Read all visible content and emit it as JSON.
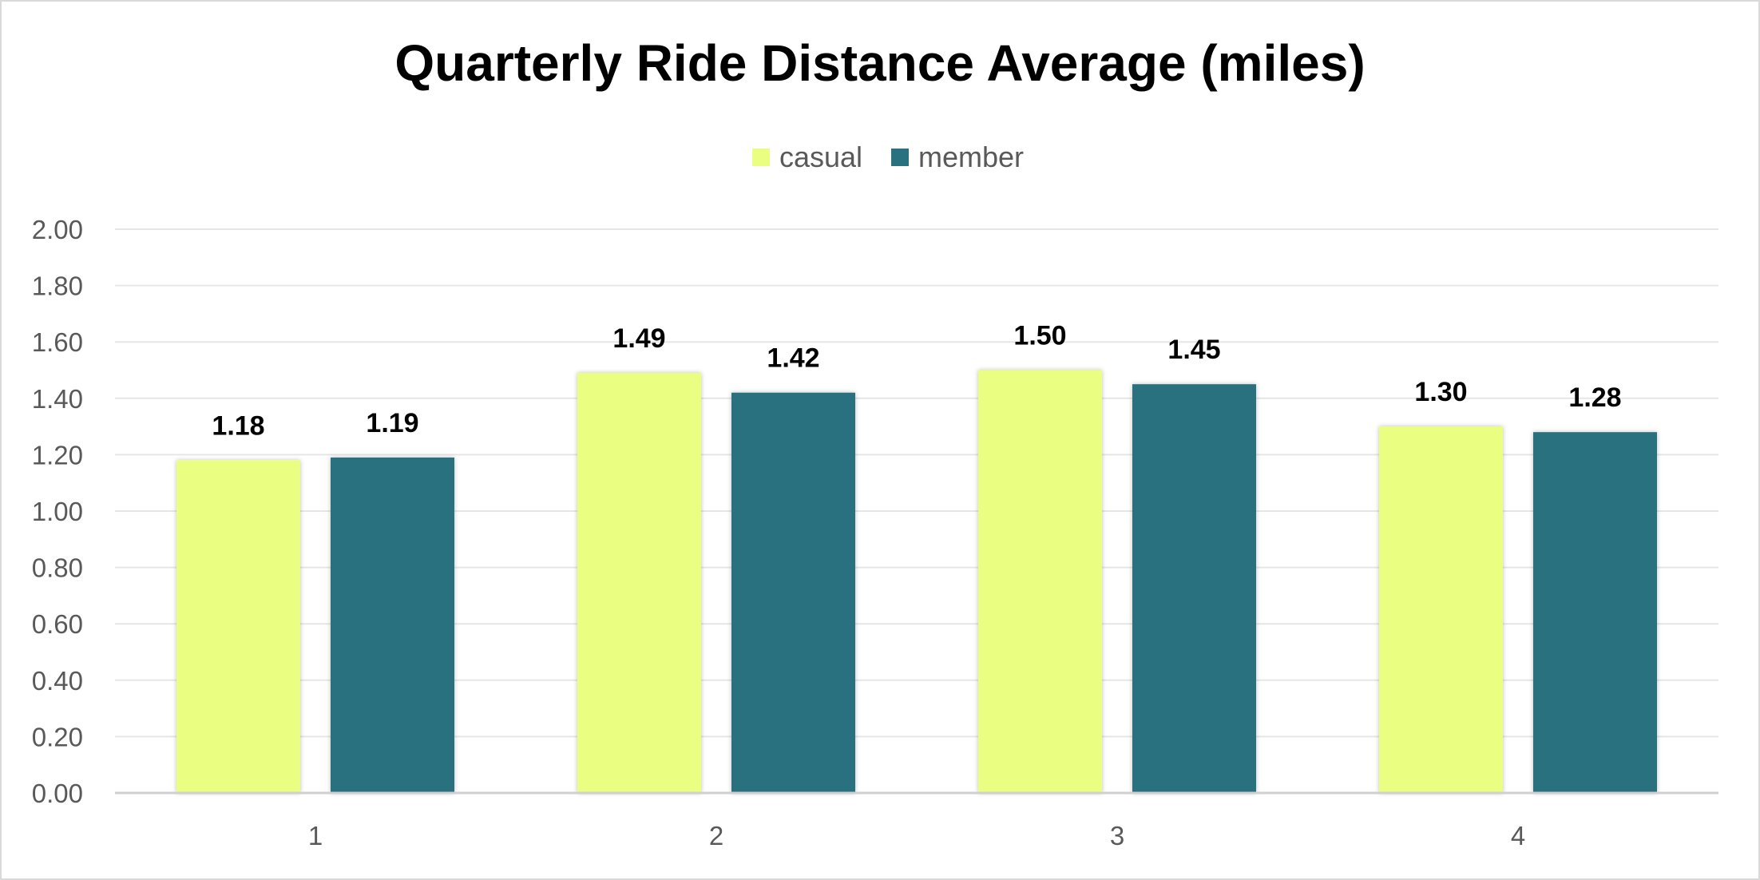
{
  "chart_data": {
    "type": "bar",
    "title": "Quarterly Ride Distance Average (miles)",
    "xlabel": "",
    "ylabel": "",
    "categories": [
      "1",
      "2",
      "3",
      "4"
    ],
    "series": [
      {
        "name": "casual",
        "color": "#EAFE82",
        "values": [
          1.18,
          1.49,
          1.5,
          1.3
        ]
      },
      {
        "name": "member",
        "color": "#2A7180",
        "values": [
          1.19,
          1.42,
          1.45,
          1.28
        ]
      }
    ],
    "ylim": [
      0,
      2.0
    ],
    "yticks": [
      "0.00",
      "0.20",
      "0.40",
      "0.60",
      "0.80",
      "1.00",
      "1.20",
      "1.40",
      "1.60",
      "1.80",
      "2.00"
    ],
    "data_labels": [
      [
        "1.18",
        "1.49",
        "1.50",
        "1.30"
      ],
      [
        "1.19",
        "1.42",
        "1.45",
        "1.28"
      ]
    ],
    "legend_position": "top",
    "grid": true
  }
}
